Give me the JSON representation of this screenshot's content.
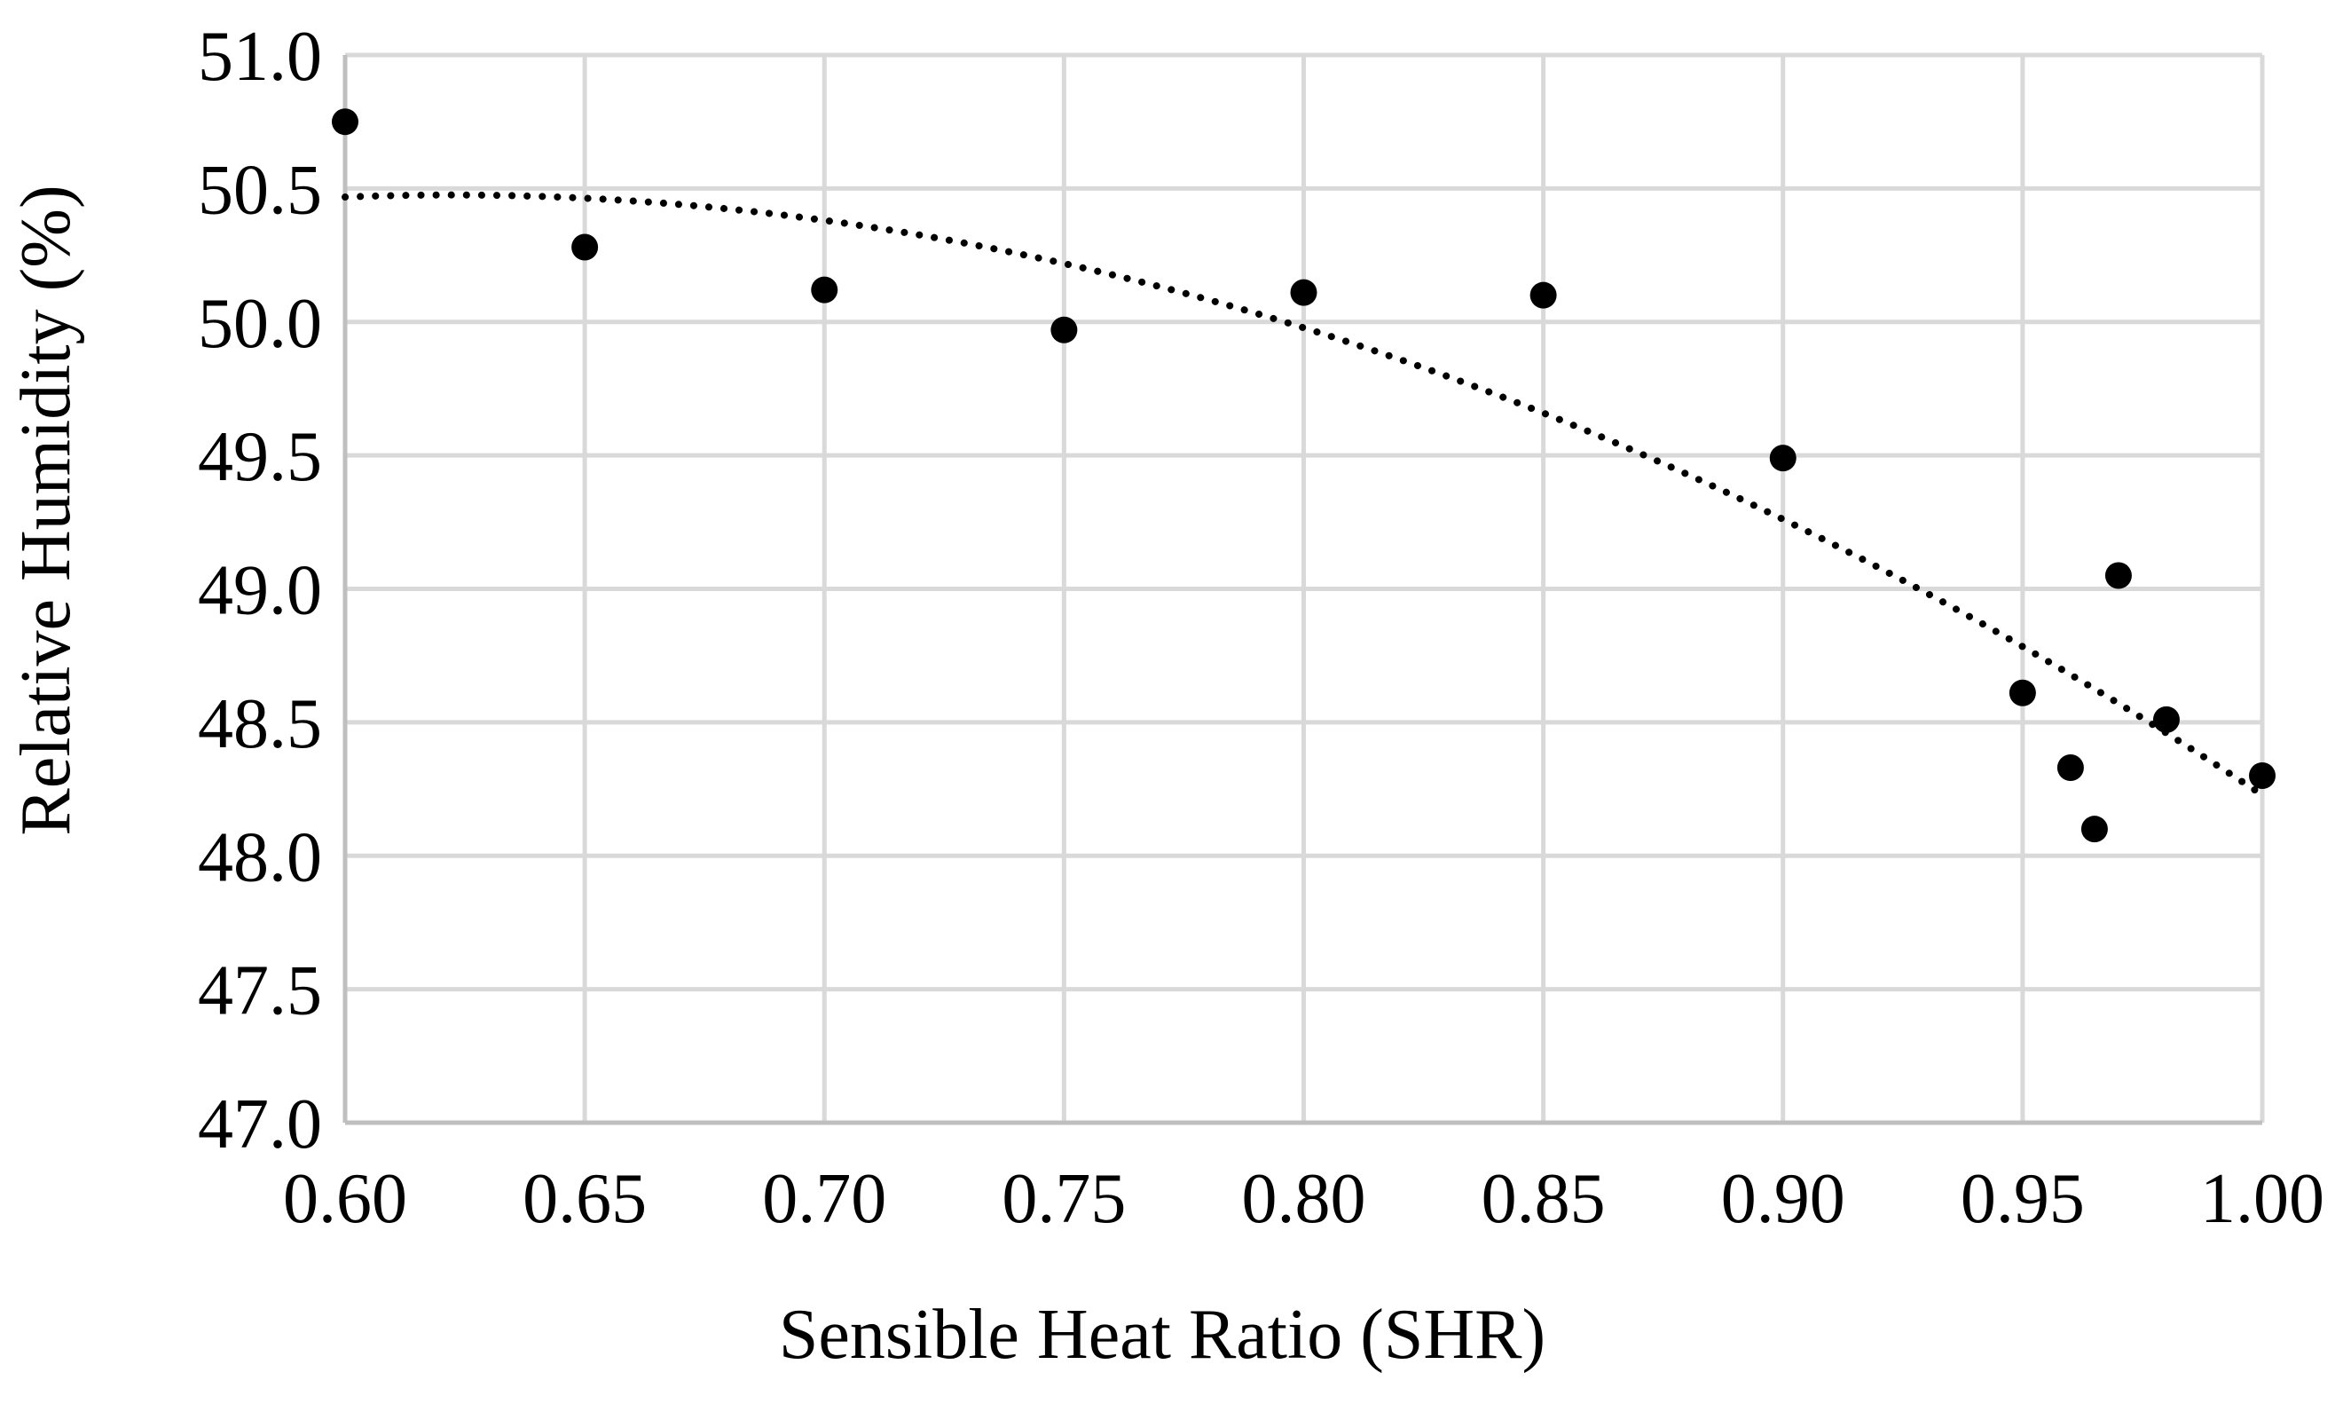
{
  "chart_data": {
    "type": "scatter",
    "title": "",
    "xlabel": "Sensible Heat Ratio (SHR)",
    "ylabel": "Relative Humidity (%)",
    "xlim": [
      0.6,
      1.0
    ],
    "ylim": [
      47.0,
      51.0
    ],
    "grid": true,
    "x_ticks": [
      0.6,
      0.65,
      0.7,
      0.75,
      0.8,
      0.85,
      0.9,
      0.95,
      1.0
    ],
    "x_tick_labels": [
      "0.60",
      "0.65",
      "0.70",
      "0.75",
      "0.80",
      "0.85",
      "0.90",
      "0.95",
      "1.00"
    ],
    "y_ticks": [
      47.0,
      47.5,
      48.0,
      48.5,
      49.0,
      49.5,
      50.0,
      50.5,
      51.0
    ],
    "y_tick_labels": [
      "47.0",
      "47.5",
      "48.0",
      "48.5",
      "49.0",
      "49.5",
      "50.0",
      "50.5",
      "51.0"
    ],
    "series": [
      {
        "name": "Relative Humidity",
        "marker": "circle",
        "color": "#000000",
        "points": [
          {
            "x": 0.6,
            "y": 50.75
          },
          {
            "x": 0.65,
            "y": 50.28
          },
          {
            "x": 0.7,
            "y": 50.12
          },
          {
            "x": 0.75,
            "y": 49.97
          },
          {
            "x": 0.8,
            "y": 50.11
          },
          {
            "x": 0.85,
            "y": 50.1
          },
          {
            "x": 0.9,
            "y": 49.49
          },
          {
            "x": 0.95,
            "y": 48.61
          },
          {
            "x": 0.96,
            "y": 48.33
          },
          {
            "x": 0.965,
            "y": 48.1
          },
          {
            "x": 0.97,
            "y": 49.05
          },
          {
            "x": 0.98,
            "y": 48.51
          },
          {
            "x": 1.0,
            "y": 48.3
          }
        ]
      }
    ],
    "trendline": {
      "type": "polynomial",
      "style": "dotted",
      "color": "#000000",
      "points": [
        {
          "x": 0.6,
          "y": 50.47
        },
        {
          "x": 0.65,
          "y": 50.46
        },
        {
          "x": 0.7,
          "y": 50.38
        },
        {
          "x": 0.75,
          "y": 50.22
        },
        {
          "x": 0.8,
          "y": 49.98
        },
        {
          "x": 0.85,
          "y": 49.66
        },
        {
          "x": 0.9,
          "y": 49.26
        },
        {
          "x": 0.95,
          "y": 48.78
        },
        {
          "x": 1.0,
          "y": 48.23
        }
      ]
    }
  },
  "colors": {
    "grid": "#d9d9d9",
    "axis": "#bfbfbf",
    "marker": "#000000",
    "background": "#ffffff"
  }
}
